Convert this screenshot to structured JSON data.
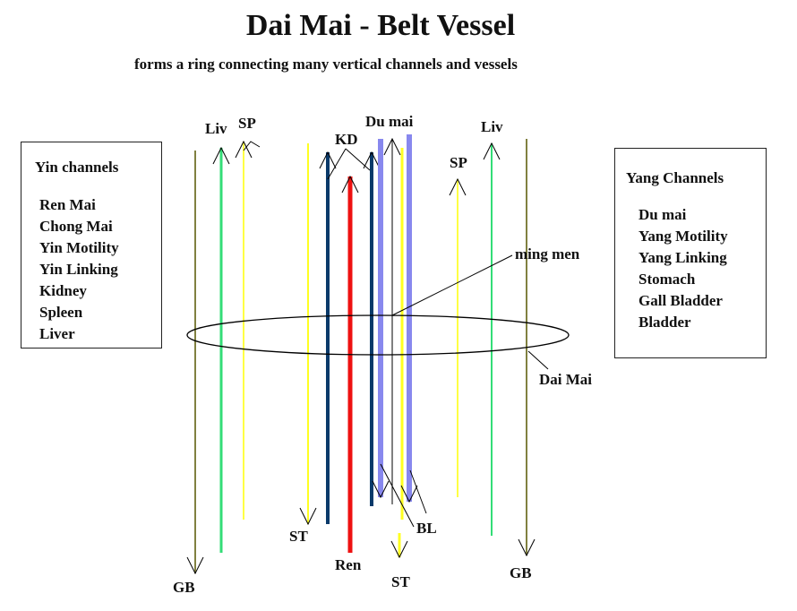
{
  "title": "Dai Mai - Belt Vessel",
  "subtitle": "forms a ring connecting many vertical channels and vessels",
  "yin_box": {
    "heading": "Yin channels",
    "items": [
      "Ren Mai",
      "Chong Mai",
      "Yin Motility",
      "Yin Linking",
      "Kidney",
      "Spleen",
      "Liver"
    ]
  },
  "yang_box": {
    "heading": "Yang Channels",
    "items": [
      "Du mai",
      "Yang Motility",
      "Yang Linking",
      "Stomach",
      "Gall Bladder",
      "Bladder"
    ]
  },
  "labels": {
    "liv_left": "Liv",
    "sp_left": "SP",
    "kd": "KD",
    "du_mai": "Du mai",
    "liv_right": "Liv",
    "sp_right": "SP",
    "ming_men": "ming men",
    "dai_mai": "Dai Mai",
    "st_left": "ST",
    "bl": "BL",
    "ren": "Ren",
    "st_center": "ST",
    "gb_left": "GB",
    "gb_right": "GB"
  },
  "colors": {
    "gb": "#808040",
    "liv": "#33dd77",
    "sp": "#ffff44",
    "st": "#ffff22",
    "kd": "#0a3a6a",
    "ren": "#ee1111",
    "du_mai": "#000000",
    "bl": "#8888ee"
  }
}
